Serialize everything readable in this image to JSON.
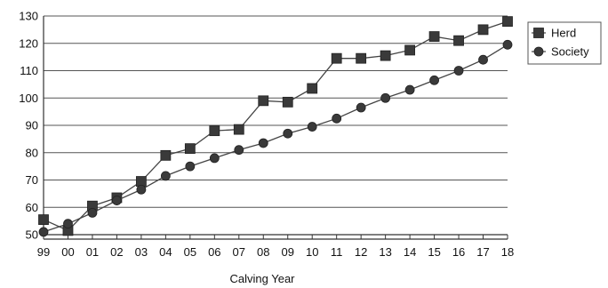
{
  "chart_data": {
    "type": "line",
    "title": "",
    "xlabel": "Calving Year",
    "ylabel": "",
    "ylim": [
      50,
      130
    ],
    "yticks": [
      50,
      60,
      70,
      80,
      90,
      100,
      110,
      120,
      130
    ],
    "categories": [
      "99",
      "00",
      "01",
      "02",
      "03",
      "04",
      "05",
      "06",
      "07",
      "08",
      "09",
      "10",
      "11",
      "12",
      "13",
      "14",
      "15",
      "16",
      "17",
      "18"
    ],
    "grid": "horizontal",
    "legend_position": "right",
    "series": [
      {
        "name": "Herd",
        "marker": "square",
        "color": "#3a3a3a",
        "values": [
          55.5,
          51.5,
          60.5,
          63.5,
          69.5,
          79,
          81.5,
          88,
          88.5,
          99,
          98.5,
          103.5,
          114.5,
          114.5,
          115.5,
          117.5,
          122.5,
          121,
          125,
          128
        ]
      },
      {
        "name": "Society",
        "marker": "circle",
        "color": "#3a3a3a",
        "values": [
          51,
          54,
          58,
          62.5,
          66.5,
          71.5,
          75,
          78,
          81,
          83.5,
          87,
          89.5,
          92.5,
          96.5,
          100,
          103,
          106.5,
          110,
          114,
          119.5
        ]
      }
    ]
  }
}
